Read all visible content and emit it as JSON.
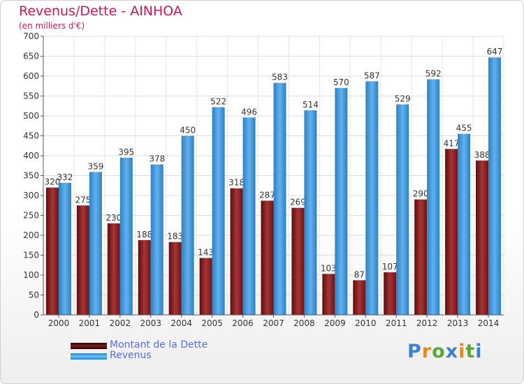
{
  "header": {
    "title": "Revenus/Dette - AINHOA",
    "subtitle": "(en milliers d'€)"
  },
  "chart_data": {
    "type": "bar",
    "title": "Revenus/Dette - AINHOA",
    "ylabel": "(en milliers d'€)",
    "categories": [
      "2000",
      "2001",
      "2002",
      "2003",
      "2004",
      "2005",
      "2006",
      "2007",
      "2008",
      "2009",
      "2010",
      "2011",
      "2012",
      "2013",
      "2014"
    ],
    "series": [
      {
        "name": "Montant de la Dette",
        "color": "#7a1a1a",
        "values": [
          320,
          275,
          230,
          188,
          183,
          143,
          318,
          287,
          269,
          103,
          87,
          107,
          290,
          417,
          388
        ]
      },
      {
        "name": "Revenus",
        "color": "#3d97d9",
        "values": [
          332,
          359,
          395,
          378,
          450,
          522,
          496,
          583,
          514,
          570,
          587,
          529,
          592,
          455,
          647
        ]
      }
    ],
    "ylim": [
      0,
      700
    ],
    "yticks": [
      0,
      50,
      100,
      150,
      200,
      250,
      300,
      350,
      400,
      450,
      500,
      550,
      600,
      650,
      700
    ],
    "grid": true,
    "legend_position": "bottom-left"
  },
  "legend": {
    "items": [
      {
        "label": "Montant de la Dette",
        "color": "#6b1515"
      },
      {
        "label": "Revenus",
        "color": "#3d97d9"
      }
    ]
  },
  "logo": {
    "letters": [
      "P",
      "r",
      "o",
      "x",
      "i",
      "t",
      "i"
    ],
    "colors": [
      "#3d7fd0",
      "#e8891a",
      "#5aa830",
      "#3d7fd0",
      "#e8891a",
      "#5aa830",
      "#3d7fd0"
    ]
  }
}
